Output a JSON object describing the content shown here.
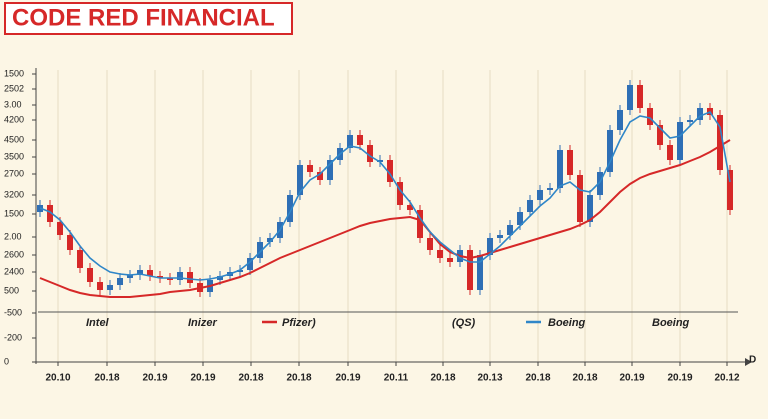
{
  "chart_data": {
    "type": "candlestick",
    "title": "CODE RED FINANCIAL",
    "x": [
      0,
      1,
      2,
      3,
      4,
      5,
      6,
      7,
      8,
      9,
      10,
      11,
      12,
      13,
      14,
      15,
      16,
      17,
      18,
      19,
      20,
      21,
      22,
      23,
      24,
      25,
      26,
      27,
      28,
      29,
      30,
      31,
      32,
      33,
      34,
      35,
      36,
      37,
      38,
      39,
      40,
      41,
      42,
      43,
      44,
      45,
      46,
      47,
      48,
      49,
      50,
      51,
      52,
      53,
      54,
      55,
      56,
      57,
      58,
      59,
      60,
      61,
      62,
      63,
      64,
      65,
      66,
      67,
      68,
      69
    ],
    "open": [
      150,
      157,
      140,
      127,
      112,
      94,
      80,
      72,
      77,
      84,
      87,
      92,
      86,
      84,
      82,
      90,
      79,
      70,
      82,
      86,
      90,
      92,
      104,
      120,
      124,
      140,
      167,
      197,
      190,
      182,
      202,
      214,
      227,
      217,
      200,
      202,
      180,
      157,
      152,
      124,
      112,
      104,
      100,
      112,
      72,
      107,
      124,
      127,
      137,
      150,
      162,
      172,
      174,
      212,
      187,
      140,
      167,
      190,
      232,
      252,
      277,
      254,
      237,
      217,
      202,
      240,
      242,
      254,
      247,
      192
    ],
    "high": [
      162,
      162,
      145,
      132,
      117,
      99,
      85,
      82,
      89,
      92,
      97,
      97,
      91,
      89,
      95,
      95,
      84,
      87,
      91,
      95,
      97,
      109,
      125,
      129,
      145,
      172,
      202,
      202,
      195,
      207,
      219,
      232,
      232,
      222,
      207,
      207,
      185,
      162,
      157,
      129,
      117,
      109,
      117,
      117,
      112,
      129,
      132,
      142,
      155,
      167,
      177,
      179,
      217,
      217,
      192,
      172,
      195,
      237,
      257,
      282,
      282,
      259,
      242,
      222,
      245,
      247,
      259,
      259,
      252,
      197
    ],
    "low": [
      145,
      135,
      122,
      107,
      89,
      75,
      67,
      67,
      72,
      79,
      82,
      81,
      79,
      77,
      77,
      74,
      65,
      65,
      77,
      81,
      85,
      87,
      99,
      115,
      119,
      135,
      162,
      185,
      177,
      177,
      197,
      209,
      212,
      195,
      195,
      175,
      152,
      147,
      119,
      107,
      99,
      95,
      95,
      67,
      67,
      102,
      119,
      122,
      132,
      145,
      157,
      167,
      169,
      182,
      135,
      135,
      162,
      185,
      227,
      247,
      249,
      232,
      212,
      197,
      197,
      235,
      237,
      242,
      187,
      147
    ],
    "close": [
      157,
      140,
      127,
      112,
      94,
      80,
      72,
      77,
      84,
      87,
      92,
      86,
      84,
      82,
      90,
      79,
      70,
      82,
      86,
      90,
      92,
      104,
      120,
      124,
      140,
      167,
      197,
      190,
      182,
      202,
      214,
      227,
      217,
      200,
      202,
      180,
      157,
      152,
      124,
      112,
      104,
      100,
      112,
      72,
      107,
      124,
      127,
      137,
      150,
      162,
      172,
      174,
      212,
      187,
      140,
      167,
      190,
      232,
      252,
      277,
      254,
      237,
      217,
      202,
      240,
      242,
      254,
      247,
      192,
      152
    ],
    "up_color": "#2f6fb5",
    "down_color": "#d62828",
    "series": [
      {
        "name": "Pfizer)",
        "color": "#d62828",
        "values": [
          84,
          80,
          76,
          72,
          69,
          67,
          66,
          65,
          65,
          65,
          66,
          67,
          68,
          70,
          71,
          72,
          74,
          76,
          79,
          82,
          85,
          89,
          94,
          99,
          104,
          108,
          112,
          116,
          120,
          124,
          128,
          132,
          136,
          139,
          141,
          143,
          144,
          145,
          142,
          130,
          118,
          110,
          106,
          104,
          106,
          109,
          112,
          115,
          118,
          121,
          124,
          127,
          130,
          133,
          137,
          142,
          150,
          160,
          170,
          178,
          184,
          188,
          191,
          194,
          197,
          201,
          205,
          210,
          216,
          222
        ]
      },
      {
        "name": "Boeing",
        "color": "#2f86c8",
        "values": [
          154,
          150,
          142,
          130,
          116,
          104,
          96,
          90,
          88,
          87,
          88,
          86,
          84,
          84,
          84,
          83,
          82,
          83,
          85,
          88,
          92,
          100,
          110,
          120,
          132,
          150,
          170,
          182,
          188,
          198,
          208,
          216,
          214,
          206,
          200,
          188,
          172,
          160,
          144,
          130,
          120,
          112,
          104,
          100,
          100,
          108,
          116,
          126,
          136,
          146,
          156,
          164,
          176,
          180,
          172,
          170,
          180,
          200,
          222,
          240,
          246,
          244,
          234,
          224,
          226,
          236,
          246,
          250,
          235,
          180
        ]
      }
    ],
    "annotations": [
      "Intel",
      "Inizer",
      "(QS)",
      "Boeing"
    ],
    "xlim": [
      -0.4,
      70
    ],
    "xticks": [
      {
        "value": 1.8,
        "label": "20.10"
      },
      {
        "value": 6.7,
        "label": "20.18"
      },
      {
        "value": 11.5,
        "label": "20.19"
      },
      {
        "value": 16.3,
        "label": "20.19"
      },
      {
        "value": 21.1,
        "label": "20.18"
      },
      {
        "value": 25.9,
        "label": "20.18"
      },
      {
        "value": 30.8,
        "label": "20.19"
      },
      {
        "value": 35.6,
        "label": "20.11"
      },
      {
        "value": 40.3,
        "label": "20.18"
      },
      {
        "value": 45,
        "label": "20.13"
      },
      {
        "value": 49.8,
        "label": "20.18"
      },
      {
        "value": 54.5,
        "label": "20.18"
      },
      {
        "value": 59.2,
        "label": "20.19"
      },
      {
        "value": 64,
        "label": "20.19"
      },
      {
        "value": 68.7,
        "label": "20.12"
      }
    ],
    "x_axis_end_label": "D",
    "ylim": [
      0,
      300
    ],
    "yticks": [
      {
        "value": 288,
        "label": "1500"
      },
      {
        "value": 273,
        "label": "2502"
      },
      {
        "value": 257,
        "label": "3.00"
      },
      {
        "value": 242,
        "label": "4200"
      },
      {
        "value": 222,
        "label": "4500"
      },
      {
        "value": 205,
        "label": "3500"
      },
      {
        "value": 188,
        "label": "2700"
      },
      {
        "value": 167,
        "label": "3200"
      },
      {
        "value": 148,
        "label": "1500"
      },
      {
        "value": 125,
        "label": "2.00"
      },
      {
        "value": 107,
        "label": "2600"
      },
      {
        "value": 90,
        "label": "2400"
      },
      {
        "value": 71,
        "label": "500"
      },
      {
        "value": 49,
        "label": "-500"
      },
      {
        "value": 24,
        "label": "-200"
      },
      0
    ],
    "grid": true
  }
}
